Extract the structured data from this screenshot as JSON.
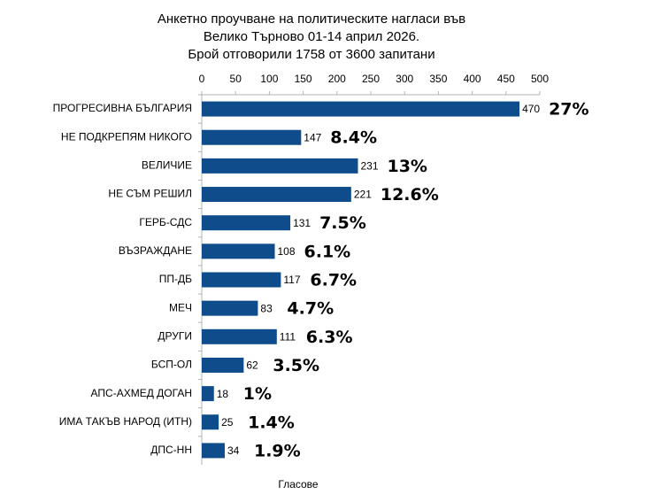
{
  "chart_data": {
    "type": "hbar",
    "title": [
      "Анкетно проучване на политическите нагласи във",
      "Велико Търново 01-14 април 2026.",
      "Брой отговорили 1758 от 3600 запитани"
    ],
    "x_label": "Гласове",
    "categories": [
      "ПРОГРЕСИВНА БЪЛГАРИЯ",
      "НЕ ПОДКРЕПЯМ НИКОГО",
      "ВЕЛИЧИЕ",
      "НЕ СЪМ РЕШИЛ",
      "ГЕРБ-СДС",
      "ВЪЗРАЖДАНЕ",
      "ПП-ДБ",
      "МЕЧ",
      "ДРУГИ",
      "БСП-ОЛ",
      "АПС-АХМЕД ДОГАН",
      "ИМА ТАКЪВ НАРОД (ИТН)",
      "ДПС-НН"
    ],
    "values": [
      470,
      147,
      231,
      221,
      131,
      108,
      117,
      83,
      111,
      62,
      18,
      25,
      34
    ],
    "shares": [
      "27%",
      "8.4%",
      "13%",
      "12.6%",
      "7.5%",
      "6.1%",
      "6.7%",
      "4.7%",
      "6.3%",
      "3.5%",
      "1%",
      "1.4%",
      "1.9%"
    ],
    "color": "#0e4c8c",
    "xlim": [
      0,
      500
    ],
    "xticks": [
      0,
      50,
      100,
      150,
      200,
      250,
      300,
      350,
      400,
      450,
      500
    ]
  }
}
